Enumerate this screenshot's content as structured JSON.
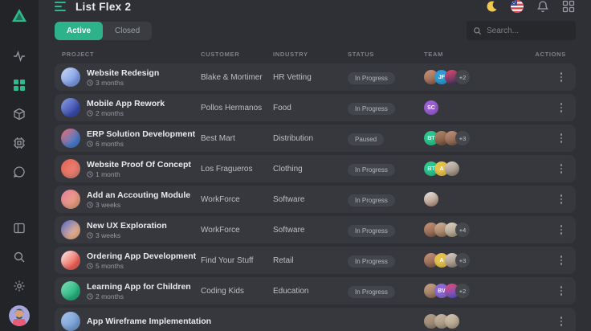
{
  "app": {
    "title": "List Flex 2",
    "accent_color": "#2eb98c"
  },
  "sidebar": {
    "nav_top": [
      "activity-icon",
      "dashboard-grid-icon",
      "package-icon",
      "cpu-icon",
      "chat-icon"
    ],
    "active_item": "dashboard-grid-icon",
    "nav_bottom": [
      "panel-layout-icon",
      "search-icon",
      "settings-gear-icon",
      "user-avatar"
    ]
  },
  "topbar": {
    "icons": [
      "moon-icon",
      "us-flag-icon",
      "bell-icon",
      "apps-grid-icon"
    ]
  },
  "toolbar": {
    "filters": [
      {
        "label": "Active",
        "selected": true
      },
      {
        "label": "Closed",
        "selected": false
      }
    ],
    "search_placeholder": "Search..."
  },
  "table": {
    "columns": [
      "PROJECT",
      "CUSTOMER",
      "INDUSTRY",
      "STATUS",
      "TEAM",
      "ACTIONS"
    ],
    "rows": [
      {
        "project": "Website Redesign",
        "duration": "3 months",
        "customer": "Blake & Mortimer",
        "industry": "HR Vetting",
        "status": "In Progress",
        "avatar_colors": [
          "#7f9fe8",
          "#cdd9f5"
        ],
        "team": [
          {
            "colors": [
              "#c9957a",
              "#8a5a4a"
            ]
          },
          {
            "label": "JF",
            "colors": [
              "#2f9bd6"
            ]
          },
          {
            "colors": [
              "#e8486e",
              "#2e3461"
            ]
          },
          {
            "label": "+2"
          }
        ]
      },
      {
        "project": "Mobile App Rework",
        "duration": "2 months",
        "customer": "Pollos Hermanos",
        "industry": "Food",
        "status": "In Progress",
        "avatar_colors": [
          "#3c4db0",
          "#8e9fe0"
        ],
        "team": [
          {
            "label": "SC",
            "colors": [
              "#9a5fd1"
            ]
          }
        ]
      },
      {
        "project": "ERP Solution Development",
        "duration": "6 months",
        "customer": "Best Mart",
        "industry": "Distribution",
        "status": "Paused",
        "avatar_colors": [
          "#4a7fd1",
          "#ef6a6a"
        ],
        "team": [
          {
            "label": "BT",
            "colors": [
              "#2ec48e"
            ]
          },
          {
            "colors": [
              "#b58969",
              "#6e4a3a"
            ]
          },
          {
            "colors": [
              "#c2937c",
              "#7a5542"
            ]
          },
          {
            "label": "+3"
          }
        ]
      },
      {
        "project": "Website Proof Of Concept",
        "duration": "1 month",
        "customer": "Los Fragueros",
        "industry": "Clothing",
        "status": "In Progress",
        "avatar_colors": [
          "#ef8576",
          "#e06050"
        ],
        "team": [
          {
            "label": "BT",
            "colors": [
              "#2ec48e"
            ]
          },
          {
            "label": "A",
            "colors": [
              "#e5c14b"
            ]
          },
          {
            "colors": [
              "#d9cfc5",
              "#8a7a6e"
            ]
          }
        ]
      },
      {
        "project": "Add an Accouting Module",
        "duration": "3 weeks",
        "customer": "WorkForce",
        "industry": "Software",
        "status": "In Progress",
        "avatar_colors": [
          "#efa184",
          "#e07d9e"
        ],
        "team": [
          {
            "colors": [
              "#e8e4de",
              "#a8826c"
            ]
          }
        ]
      },
      {
        "project": "New UX Exploration",
        "duration": "3 weeks",
        "customer": "WorkForce",
        "industry": "Software",
        "status": "In Progress",
        "avatar_colors": [
          "#f2b794",
          "#4a63c9"
        ],
        "team": [
          {
            "colors": [
              "#c9957a",
              "#7a5542"
            ]
          },
          {
            "colors": [
              "#d4b394",
              "#8a6a52"
            ]
          },
          {
            "colors": [
              "#e0d6c9",
              "#9a8a72"
            ]
          },
          {
            "label": "+4"
          }
        ]
      },
      {
        "project": "Ordering App Development",
        "duration": "5 months",
        "customer": "Find Your Stuff",
        "industry": "Retail",
        "status": "In Progress",
        "avatar_colors": [
          "#f2655a",
          "#f5f0ea"
        ],
        "team": [
          {
            "colors": [
              "#c9957a",
              "#7a5542"
            ]
          },
          {
            "label": "A",
            "colors": [
              "#e5c14b"
            ]
          },
          {
            "colors": [
              "#d9cfc5",
              "#8a7a6e"
            ]
          },
          {
            "label": "+3"
          }
        ]
      },
      {
        "project": "Learning App for Children",
        "duration": "2 months",
        "customer": "Coding Kids",
        "industry": "Education",
        "status": "In Progress",
        "avatar_colors": [
          "#28b580",
          "#7fe0b8"
        ],
        "team": [
          {
            "colors": [
              "#c9a584",
              "#8a6a52"
            ]
          },
          {
            "label": "BV",
            "colors": [
              "#8a6ad1"
            ]
          },
          {
            "colors": [
              "#e8486e",
              "#4a5ae0"
            ]
          },
          {
            "label": "+2"
          }
        ]
      },
      {
        "project": "App Wireframe Implementation",
        "duration": "",
        "customer": "",
        "industry": "",
        "status": "",
        "avatar_colors": [
          "#7aa3d9",
          "#a8c4e8"
        ],
        "team": [
          {
            "colors": [
              "#b5a28c",
              "#8a7a66"
            ]
          },
          {
            "colors": [
              "#c9b8a5",
              "#9a8a76"
            ]
          },
          {
            "colors": [
              "#d4c5b2",
              "#a89882"
            ]
          }
        ]
      }
    ]
  }
}
